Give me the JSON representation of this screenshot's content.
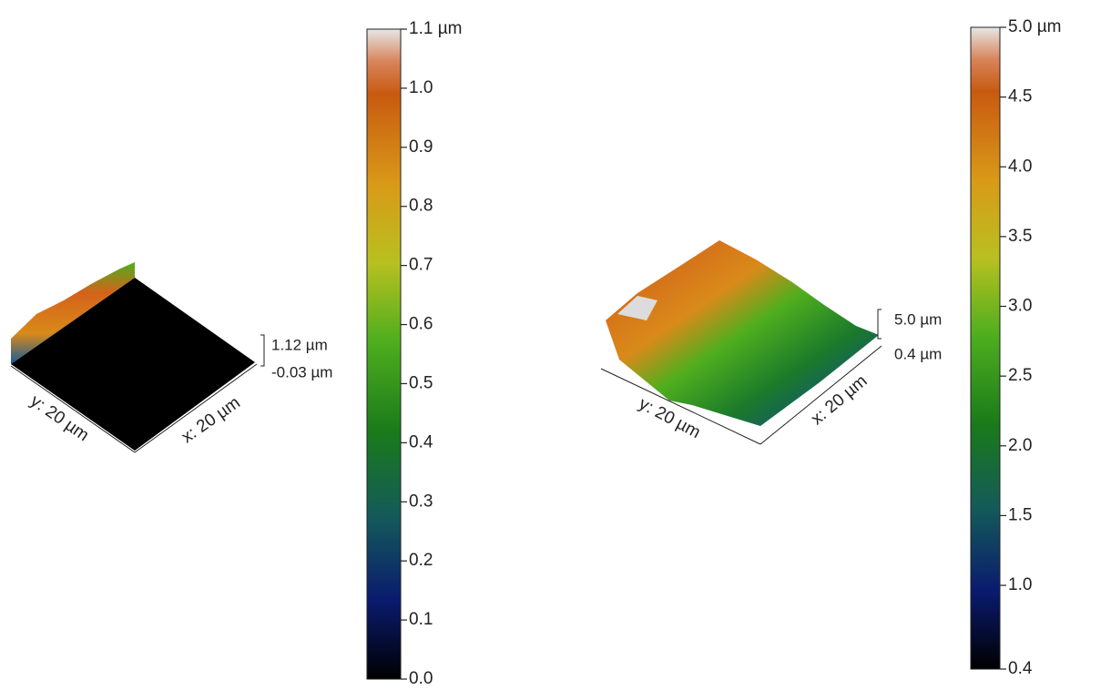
{
  "panels": [
    {
      "surface_labels": {
        "x_axis": "x: 20 µm",
        "y_axis": "y: 20 µm",
        "z_max": "1.12 µm",
        "z_min": "-0.03 µm"
      },
      "colorbar": {
        "lim": [
          0,
          1.1
        ],
        "ticks": [
          {
            "value": 0,
            "label": "0.0"
          },
          0.1,
          0.2,
          0.3,
          0.4,
          0.5,
          0.6,
          0.7,
          0.8,
          0.9,
          {
            "value": 1,
            "label": "1.0"
          },
          {
            "value": 1.1,
            "label": "1.1 µm"
          }
        ]
      }
    },
    {
      "surface_labels": {
        "x_axis": "x: 20 µm",
        "y_axis": "y: 20 µm",
        "z_max": "5.0 µm",
        "z_min": "0.4 µm"
      },
      "colorbar": {
        "lim": [
          0.4,
          5.0
        ],
        "ticks": [
          0.4,
          {
            "value": 1,
            "label": "1.0"
          },
          1.5,
          {
            "value": 2,
            "label": "2.0"
          },
          2.5,
          {
            "value": 3,
            "label": "3.0"
          },
          3.5,
          {
            "value": 4,
            "label": "4.0"
          },
          4.5,
          {
            "value": 5,
            "label": "5.0 µm"
          }
        ]
      }
    }
  ]
}
